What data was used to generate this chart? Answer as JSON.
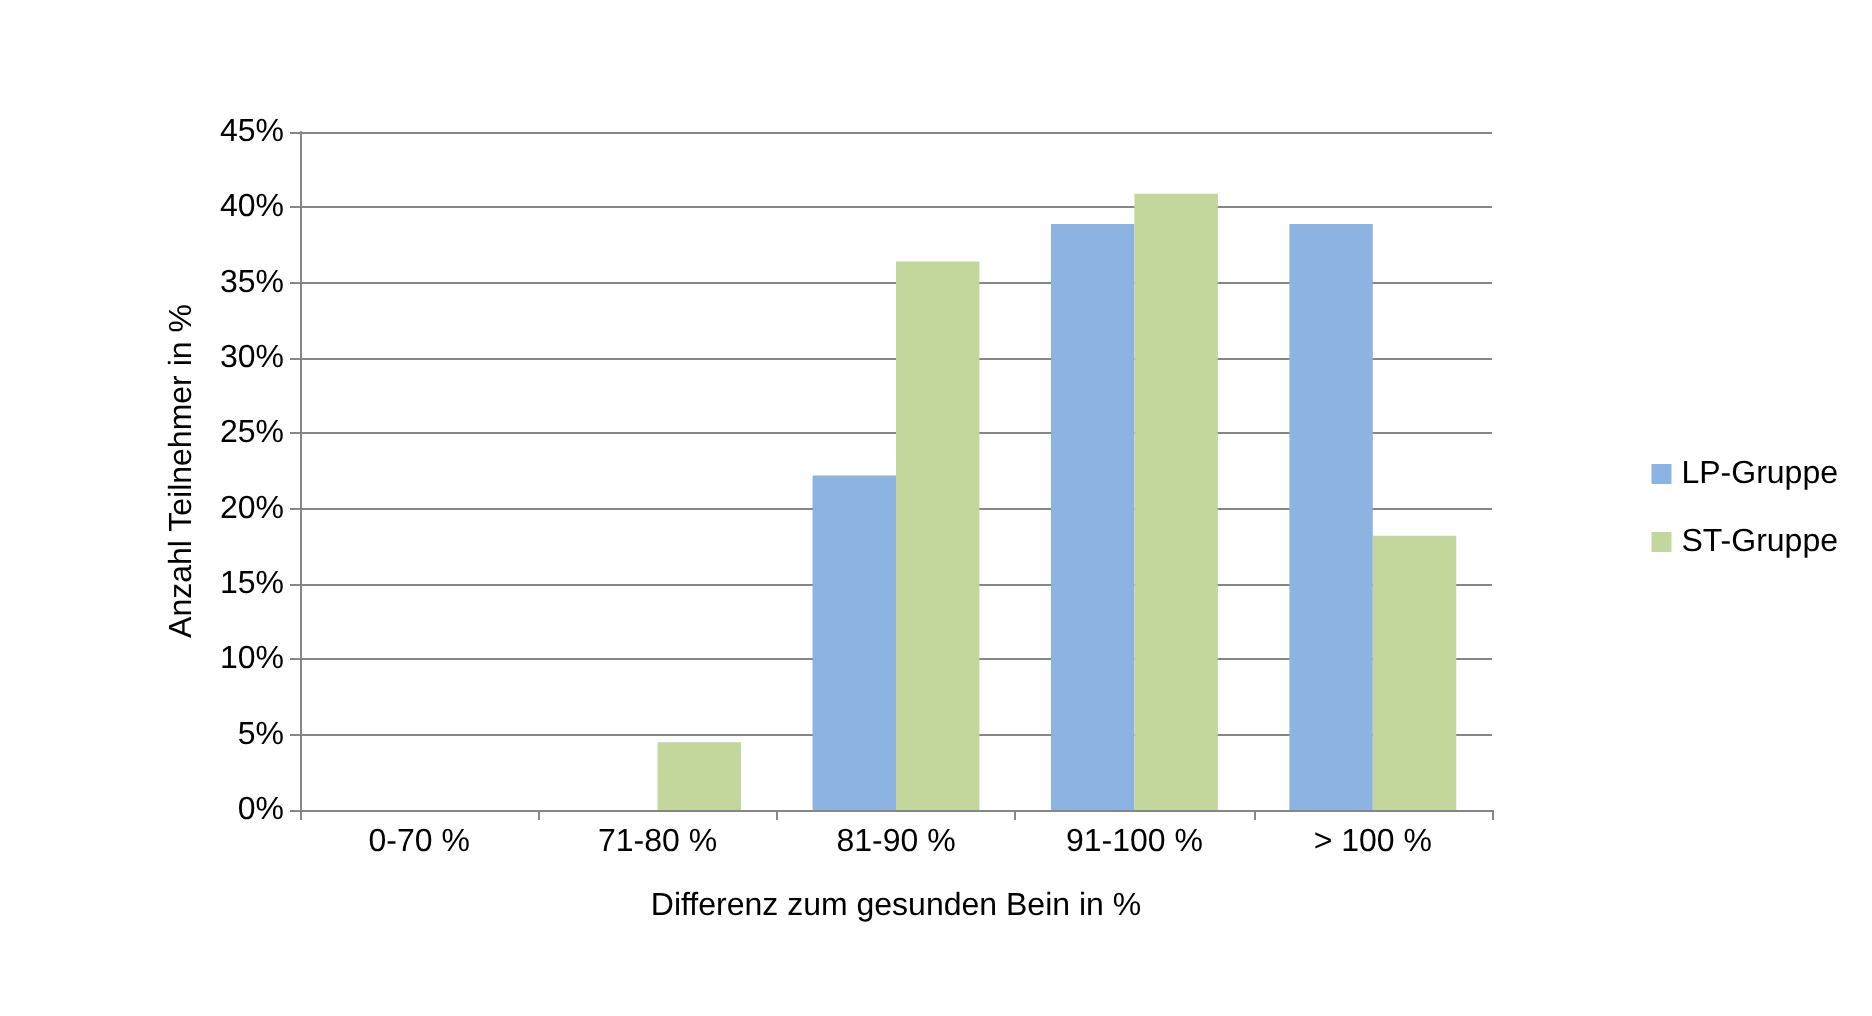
{
  "chart_data": {
    "type": "bar",
    "xlabel": "Differenz zum gesunden Bein in %",
    "ylabel": "Anzahl Teilnehmer in %",
    "categories": [
      "0-70 %",
      "71-80 %",
      "81-90 %",
      "91-100 %",
      "> 100 %"
    ],
    "series": [
      {
        "name": "LP-Gruppe",
        "color": "#8db3e2",
        "values": [
          0,
          0,
          22.2,
          38.9,
          38.9
        ]
      },
      {
        "name": "ST-Gruppe",
        "color": "#c3d69b",
        "values": [
          0,
          4.5,
          36.4,
          40.9,
          18.2
        ]
      }
    ],
    "ylim": [
      0,
      45
    ],
    "yticks": [
      {
        "value": 0,
        "label": "0%"
      },
      {
        "value": 5,
        "label": "5%"
      },
      {
        "value": 10,
        "label": "10%"
      },
      {
        "value": 15,
        "label": "15%"
      },
      {
        "value": 20,
        "label": "20%"
      },
      {
        "value": 25,
        "label": "25%"
      },
      {
        "value": 30,
        "label": "30%"
      },
      {
        "value": 35,
        "label": "35%"
      },
      {
        "value": 40,
        "label": "40%"
      },
      {
        "value": 45,
        "label": "45%"
      }
    ],
    "grid": "y",
    "legend": "right"
  }
}
